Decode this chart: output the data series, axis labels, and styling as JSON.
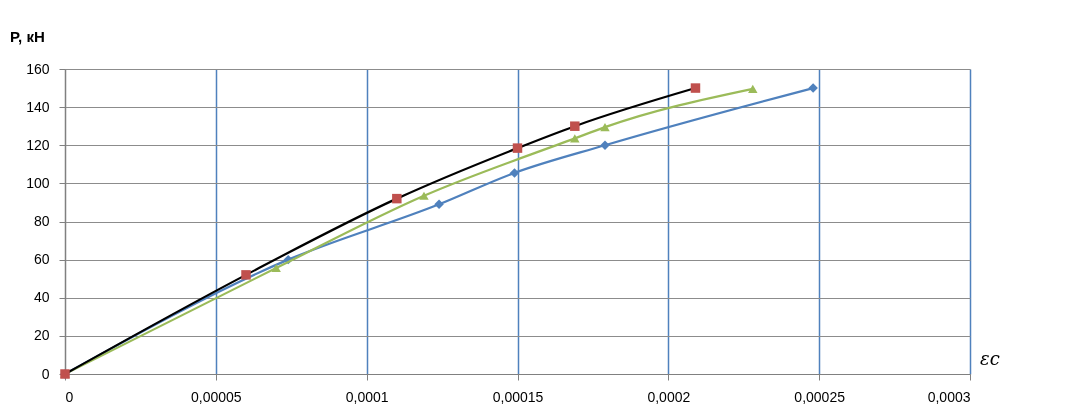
{
  "chart_data": {
    "type": "line",
    "xlabel": "εc",
    "ylabel": "P, кН",
    "xlim": [
      0,
      0.0003
    ],
    "ylim": [
      0,
      160
    ],
    "xticks": [
      {
        "value": 0,
        "label": "0"
      },
      {
        "value": 5e-05,
        "label": "0,00005"
      },
      {
        "value": 0.0001,
        "label": "0,0001"
      },
      {
        "value": 0.00015,
        "label": "0,00015"
      },
      {
        "value": 0.0002,
        "label": "0,0002"
      },
      {
        "value": 0.00025,
        "label": "0,00025"
      },
      {
        "value": 0.0003,
        "label": "0,0003"
      }
    ],
    "yticks": [
      0,
      20,
      40,
      60,
      80,
      100,
      120,
      140,
      160
    ],
    "grid": true,
    "series": [
      {
        "marker": "diamond",
        "color": "#4f81bd",
        "x": [
          0,
          7.4e-05,
          0.000124,
          0.000149,
          0.000179,
          0.000248
        ],
        "values": [
          0,
          60,
          89,
          105.5,
          120,
          150
        ]
      },
      {
        "marker": "triangle",
        "color": "#9bbb59",
        "x": [
          0,
          7e-05,
          0.000119,
          0.000169,
          0.000179,
          0.000228
        ],
        "values": [
          0,
          55.6,
          93.5,
          123.6,
          129.5,
          149.6
        ]
      },
      {
        "marker": "none",
        "color": "#000000",
        "x": [
          0,
          6e-05,
          0.00011,
          0.00015,
          0.000169,
          0.000209
        ],
        "values": [
          0,
          52,
          92,
          118.5,
          130,
          150
        ]
      },
      {
        "type": "scatter",
        "marker": "square",
        "color": "#c0504d",
        "x": [
          0,
          6e-05,
          0.00011,
          0.00015,
          0.000169,
          0.000209
        ],
        "values": [
          0,
          52,
          92,
          118.5,
          130,
          150
        ]
      }
    ]
  }
}
